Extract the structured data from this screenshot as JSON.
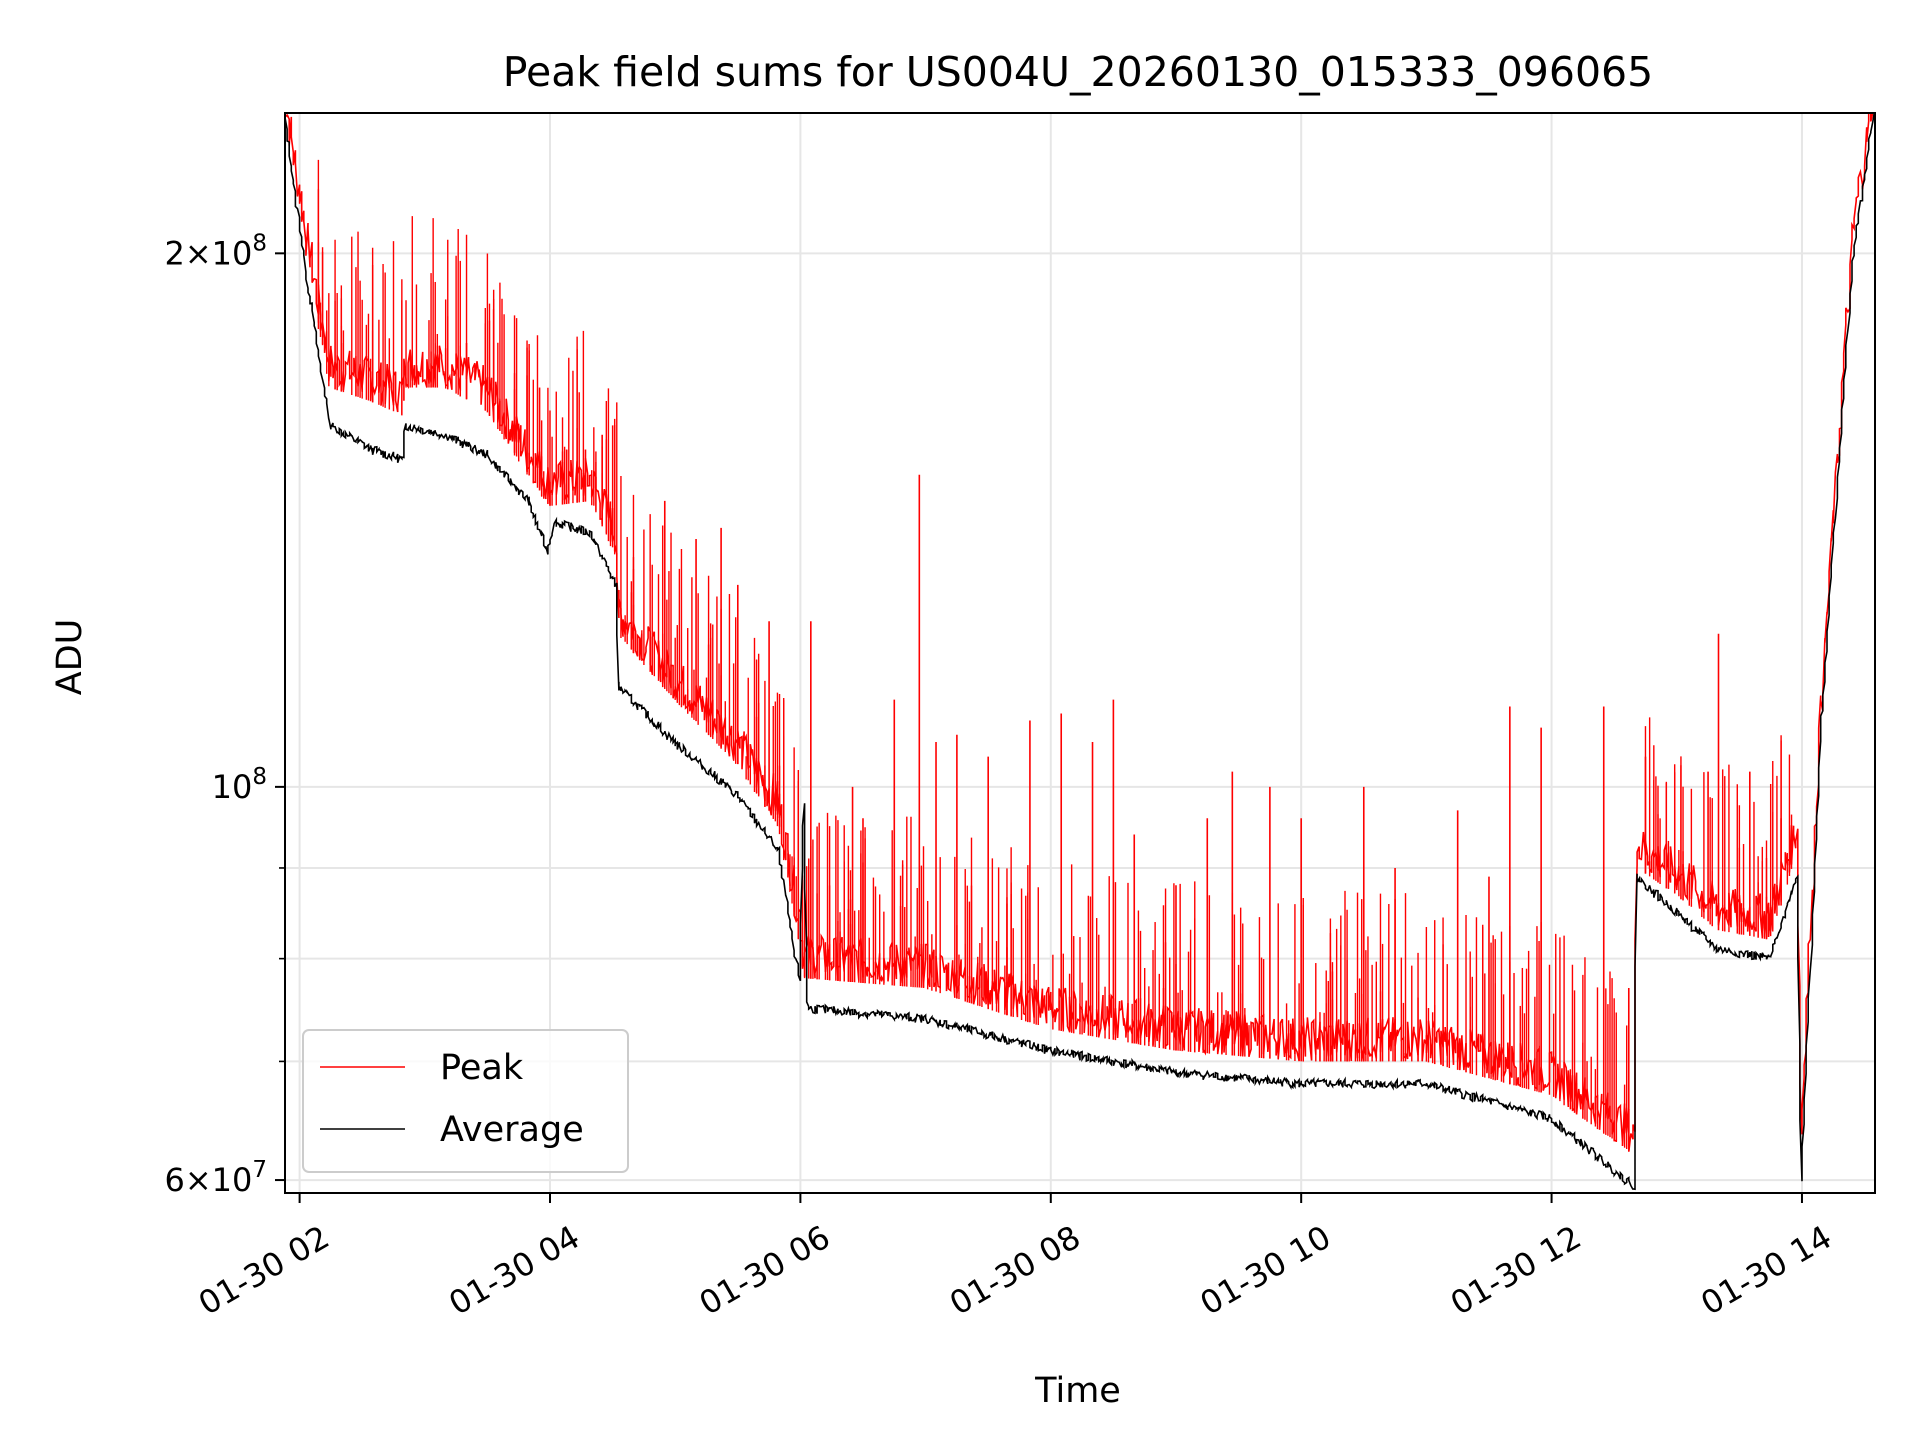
{
  "chart_data": {
    "type": "line",
    "title": "Peak field sums for US004U_20260130_015333_096065",
    "xlabel": "Time",
    "ylabel": "ADU",
    "x_range": [
      "2026-01-30T01:53",
      "2026-01-30T14:35"
    ],
    "y_range": [
      59000000,
      240000000
    ],
    "y_scale": "log",
    "grid": true,
    "legend_position": "lower-left",
    "x_ticks": [
      {
        "value": "2026-01-30T02:00",
        "label": "01-30 02"
      },
      {
        "value": "2026-01-30T04:00",
        "label": "01-30 04"
      },
      {
        "value": "2026-01-30T06:00",
        "label": "01-30 06"
      },
      {
        "value": "2026-01-30T08:00",
        "label": "01-30 08"
      },
      {
        "value": "2026-01-30T10:00",
        "label": "01-30 10"
      },
      {
        "value": "2026-01-30T12:00",
        "label": "01-30 12"
      },
      {
        "value": "2026-01-30T14:00",
        "label": "01-30 14"
      }
    ],
    "y_major_ticks": [
      {
        "value": 60000000,
        "label_base": "6",
        "label_exp": "7"
      },
      {
        "value": 100000000,
        "label_base": "",
        "label_exp": "8"
      },
      {
        "value": 200000000,
        "label_base": "2",
        "label_exp": "8"
      }
    ],
    "y_minor_ticks": [
      70000000,
      80000000,
      90000000
    ],
    "series": [
      {
        "name": "Peak",
        "color": "#ff0000",
        "points": [
          [
            "2026-01-30T01:53",
            240000000
          ],
          [
            "2026-01-30T02:05",
            195000000
          ],
          [
            "2026-01-30T02:15",
            168000000
          ],
          [
            "2026-01-30T02:35",
            165000000
          ],
          [
            "2026-01-30T02:50",
            162000000
          ],
          [
            "2026-01-30T02:51",
            168000000
          ],
          [
            "2026-01-30T03:10",
            168000000
          ],
          [
            "2026-01-30T03:30",
            163000000
          ],
          [
            "2026-01-30T03:50",
            150000000
          ],
          [
            "2026-01-30T04:00",
            144000000
          ],
          [
            "2026-01-30T04:20",
            145000000
          ],
          [
            "2026-01-30T04:32",
            135000000
          ],
          [
            "2026-01-30T04:33",
            122000000
          ],
          [
            "2026-01-30T05:00",
            112000000
          ],
          [
            "2026-01-30T05:30",
            103000000
          ],
          [
            "2026-01-30T05:50",
            95000000
          ],
          [
            "2026-01-30T06:00",
            82000000
          ],
          [
            "2026-01-30T06:02",
            78000000
          ],
          [
            "2026-01-30T07:00",
            77000000
          ],
          [
            "2026-01-30T08:00",
            73000000
          ],
          [
            "2026-01-30T09:00",
            71000000
          ],
          [
            "2026-01-30T10:00",
            70000000
          ],
          [
            "2026-01-30T11:00",
            70000000
          ],
          [
            "2026-01-30T12:00",
            67000000
          ],
          [
            "2026-01-30T12:40",
            62000000
          ],
          [
            "2026-01-30T12:41",
            90000000
          ],
          [
            "2026-01-30T13:00",
            87000000
          ],
          [
            "2026-01-30T13:20",
            83000000
          ],
          [
            "2026-01-30T13:45",
            82000000
          ],
          [
            "2026-01-30T13:58",
            92000000
          ],
          [
            "2026-01-30T14:00",
            62000000
          ],
          [
            "2026-01-30T14:10",
            110000000
          ],
          [
            "2026-01-30T14:25",
            200000000
          ],
          [
            "2026-01-30T14:35",
            240000000
          ]
        ],
        "spikes": [
          [
            "2026-01-30T02:10",
            183000000
          ],
          [
            "2026-01-30T02:20",
            178000000
          ],
          [
            "2026-01-30T03:20",
            178000000
          ],
          [
            "2026-01-30T03:33",
            186000000
          ],
          [
            "2026-01-30T03:55",
            168000000
          ],
          [
            "2026-01-30T04:08",
            155000000
          ],
          [
            "2026-01-30T04:17",
            155000000
          ],
          [
            "2026-01-30T04:25",
            158000000
          ],
          [
            "2026-01-30T04:31",
            160000000
          ],
          [
            "2026-01-30T04:55",
            145000000
          ],
          [
            "2026-01-30T05:10",
            138000000
          ],
          [
            "2026-01-30T05:22",
            140000000
          ],
          [
            "2026-01-30T05:30",
            130000000
          ],
          [
            "2026-01-30T05:45",
            124000000
          ],
          [
            "2026-01-30T06:05",
            124000000
          ],
          [
            "2026-01-30T06:25",
            100000000
          ],
          [
            "2026-01-30T06:30",
            96000000
          ],
          [
            "2026-01-30T06:45",
            112000000
          ],
          [
            "2026-01-30T06:57",
            150000000
          ],
          [
            "2026-01-30T07:05",
            106000000
          ],
          [
            "2026-01-30T07:15",
            107000000
          ],
          [
            "2026-01-30T07:30",
            104000000
          ],
          [
            "2026-01-30T07:50",
            109000000
          ],
          [
            "2026-01-30T08:05",
            110000000
          ],
          [
            "2026-01-30T08:20",
            106000000
          ],
          [
            "2026-01-30T08:30",
            112000000
          ],
          [
            "2026-01-30T08:40",
            94000000
          ],
          [
            "2026-01-30T09:00",
            88000000
          ],
          [
            "2026-01-30T09:15",
            96000000
          ],
          [
            "2026-01-30T09:27",
            102000000
          ],
          [
            "2026-01-30T09:45",
            100000000
          ],
          [
            "2026-01-30T10:00",
            96000000
          ],
          [
            "2026-01-30T10:30",
            100000000
          ],
          [
            "2026-01-30T10:45",
            90000000
          ],
          [
            "2026-01-30T11:15",
            97000000
          ],
          [
            "2026-01-30T11:30",
            89000000
          ],
          [
            "2026-01-30T11:40",
            111000000
          ],
          [
            "2026-01-30T11:55",
            108000000
          ],
          [
            "2026-01-30T12:25",
            111000000
          ],
          [
            "2026-01-30T12:37",
            77000000
          ],
          [
            "2026-01-30T12:45",
            104000000
          ],
          [
            "2026-01-30T13:15",
            102000000
          ],
          [
            "2026-01-30T13:20",
            122000000
          ],
          [
            "2026-01-30T13:35",
            102000000
          ],
          [
            "2026-01-30T13:50",
            96000000
          ]
        ]
      },
      {
        "name": "Average",
        "color": "#000000",
        "points": [
          [
            "2026-01-30T01:53",
            240000000
          ],
          [
            "2026-01-30T02:05",
            190000000
          ],
          [
            "2026-01-30T02:15",
            160000000
          ],
          [
            "2026-01-30T02:35",
            155000000
          ],
          [
            "2026-01-30T02:50",
            153000000
          ],
          [
            "2026-01-30T02:51",
            160000000
          ],
          [
            "2026-01-30T03:10",
            158000000
          ],
          [
            "2026-01-30T03:30",
            154000000
          ],
          [
            "2026-01-30T03:50",
            145000000
          ],
          [
            "2026-01-30T03:59",
            136000000
          ],
          [
            "2026-01-30T04:03",
            141000000
          ],
          [
            "2026-01-30T04:20",
            139000000
          ],
          [
            "2026-01-30T04:32",
            130000000
          ],
          [
            "2026-01-30T04:33",
            114000000
          ],
          [
            "2026-01-30T05:00",
            106000000
          ],
          [
            "2026-01-30T05:30",
            99000000
          ],
          [
            "2026-01-30T05:50",
            92000000
          ],
          [
            "2026-01-30T05:58",
            80000000
          ],
          [
            "2026-01-30T06:00",
            78000000
          ],
          [
            "2026-01-30T06:02",
            98000000
          ],
          [
            "2026-01-30T06:04",
            75000000
          ],
          [
            "2026-01-30T07:00",
            74000000
          ],
          [
            "2026-01-30T08:00",
            71000000
          ],
          [
            "2026-01-30T09:00",
            69000000
          ],
          [
            "2026-01-30T10:00",
            68000000
          ],
          [
            "2026-01-30T11:00",
            68000000
          ],
          [
            "2026-01-30T12:00",
            65000000
          ],
          [
            "2026-01-30T12:40",
            59500000
          ],
          [
            "2026-01-30T12:41",
            89000000
          ],
          [
            "2026-01-30T13:00",
            85000000
          ],
          [
            "2026-01-30T13:20",
            81000000
          ],
          [
            "2026-01-30T13:45",
            80000000
          ],
          [
            "2026-01-30T13:58",
            89000000
          ],
          [
            "2026-01-30T14:00",
            60000000
          ],
          [
            "2026-01-30T14:10",
            110000000
          ],
          [
            "2026-01-30T14:25",
            200000000
          ],
          [
            "2026-01-30T14:35",
            240000000
          ]
        ]
      }
    ]
  }
}
